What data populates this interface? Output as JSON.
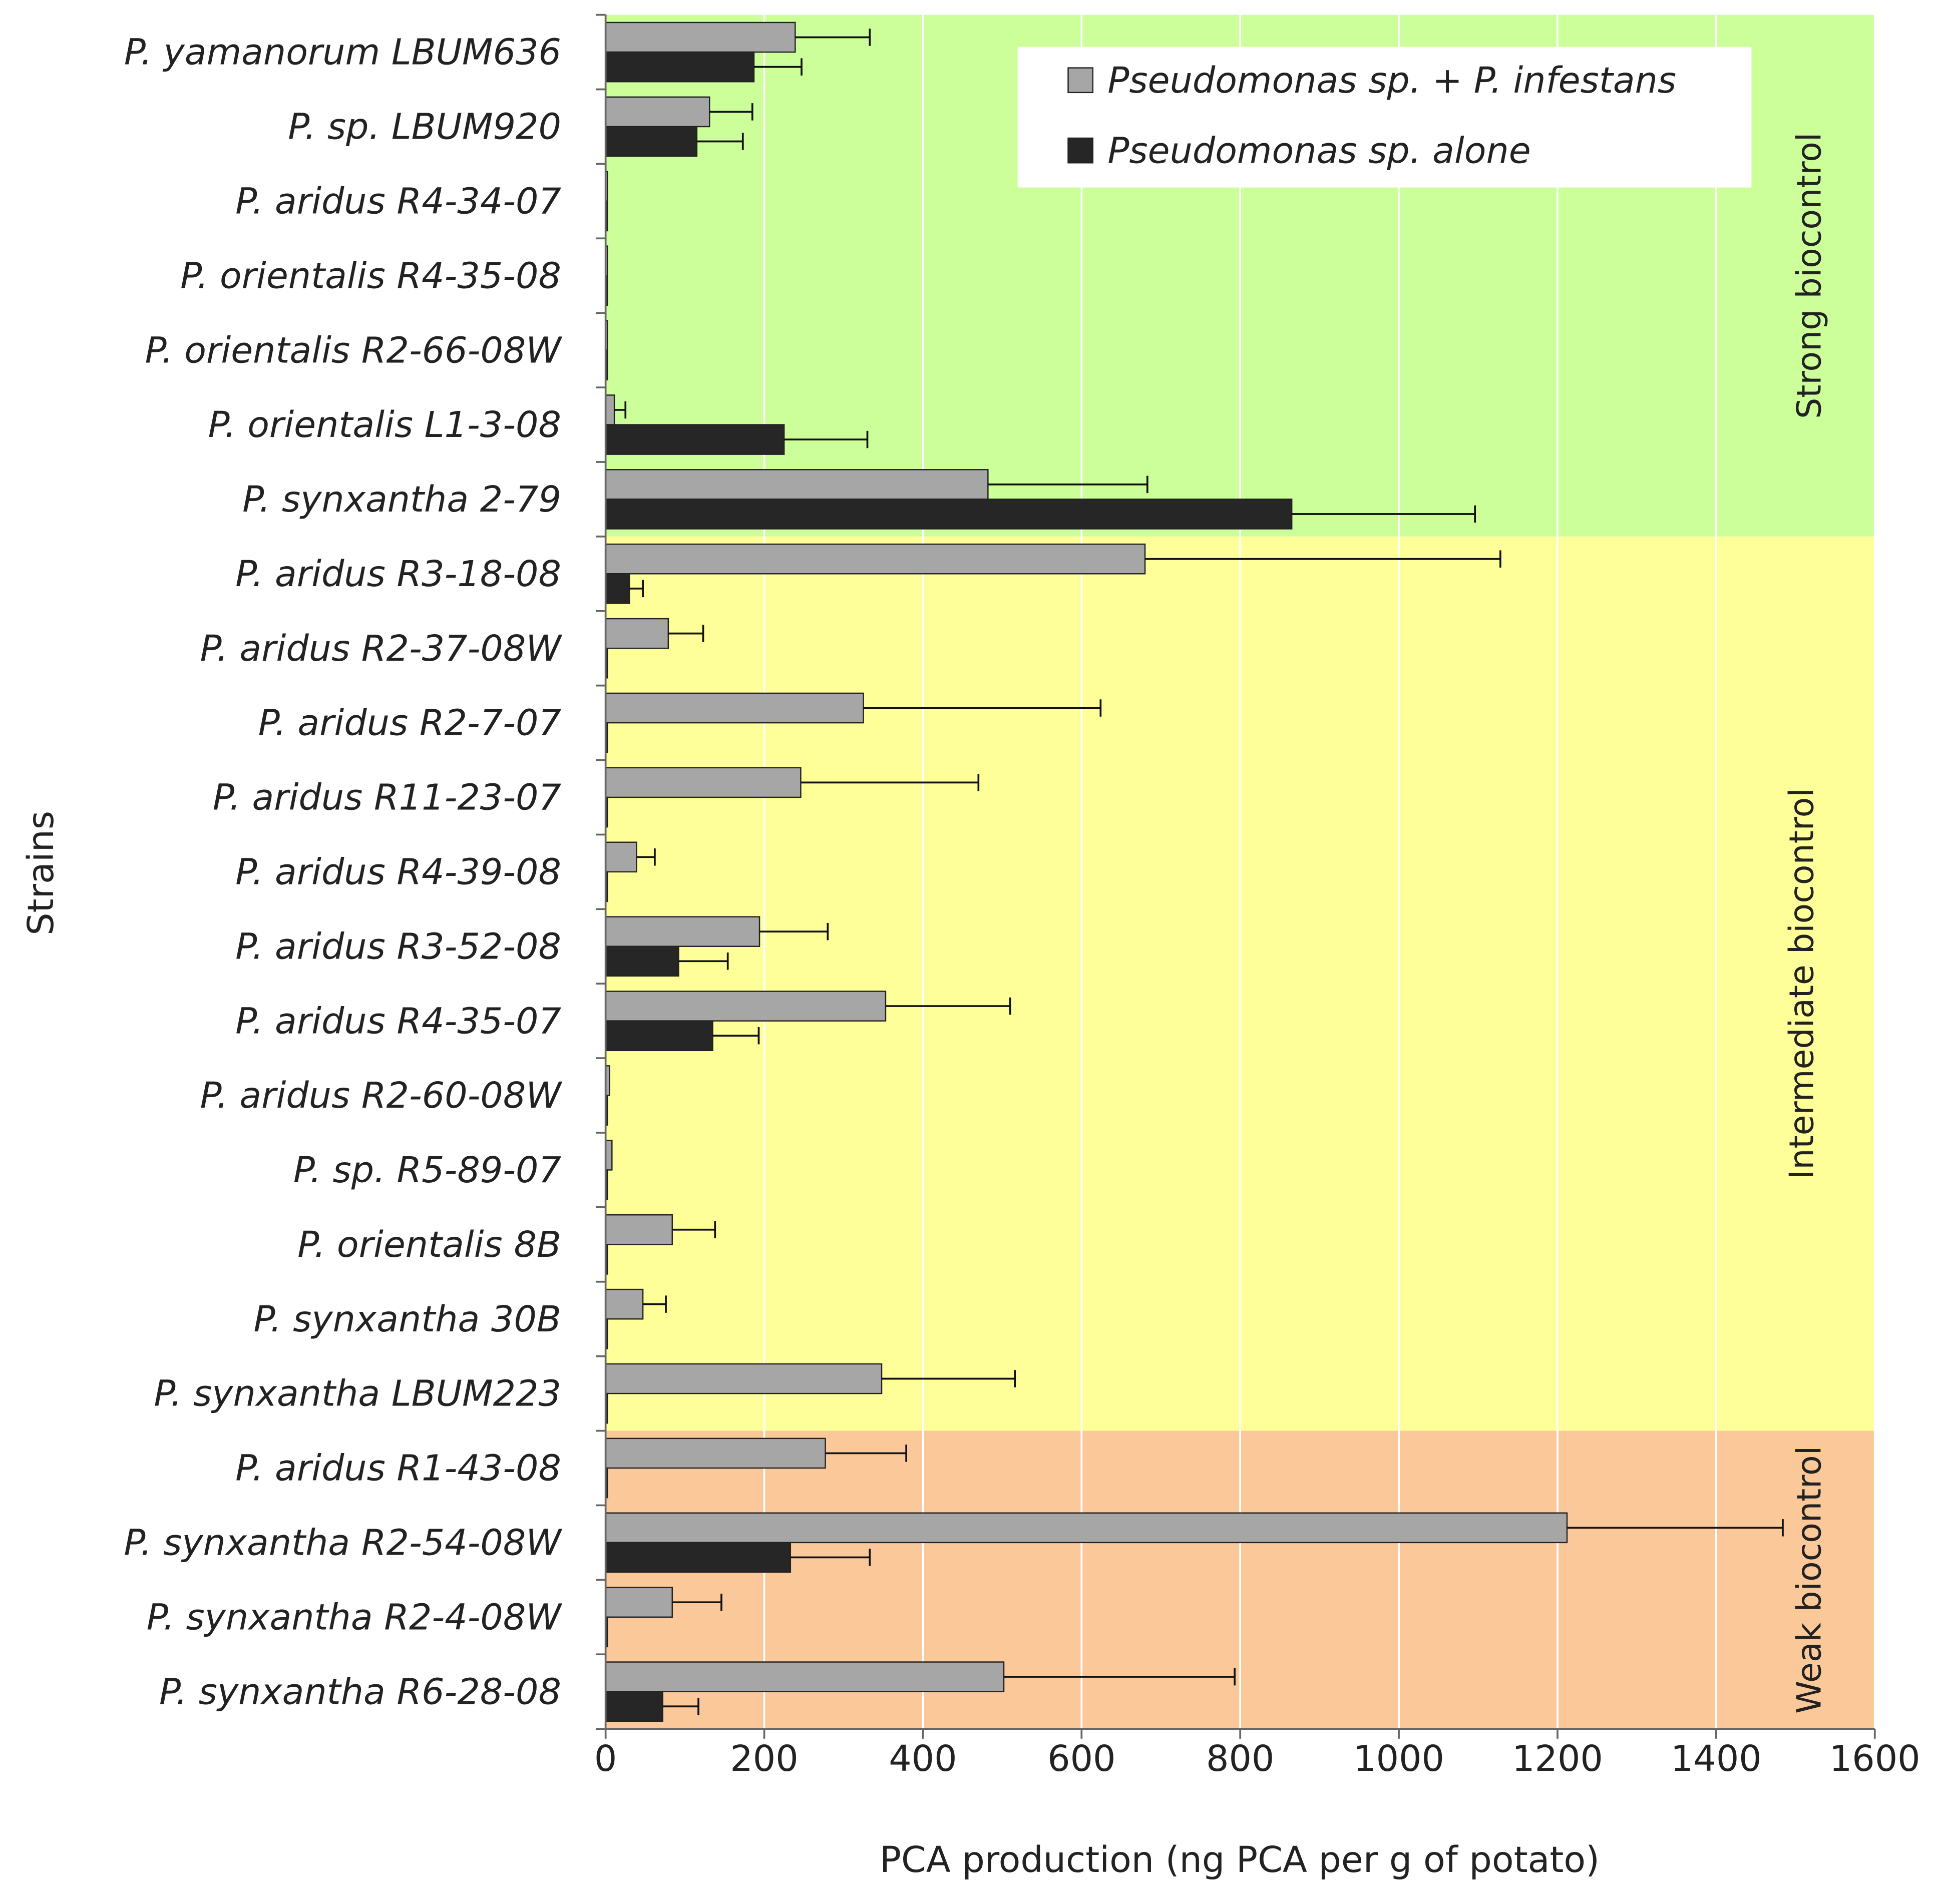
{
  "chart_data": {
    "type": "bar",
    "orientation": "horizontal",
    "xlabel": "PCA production (ng PCA per g of potato)",
    "ylabel": "Strains",
    "xlim": [
      0,
      1600
    ],
    "xticks": [
      0,
      200,
      400,
      600,
      800,
      1000,
      1200,
      1400,
      1600
    ],
    "xtick_labels": [
      "0",
      "200",
      "400",
      "600",
      "800",
      "1000",
      "1200",
      "1400",
      "1600"
    ],
    "grid": "vertical",
    "legend_position": "top-right",
    "categories": [
      "P. yamanorum LBUM636",
      "P. sp. LBUM920",
      "P. aridus R4-34-07",
      "P. orientalis R4-35-08",
      "P. orientalis R2-66-08W",
      "P. orientalis L1-3-08",
      "P. synxantha 2-79",
      "P. aridus R3-18-08",
      "P. aridus R2-37-08W",
      "P. aridus R2-7-07",
      "P. aridus R11-23-07",
      "P. aridus R4-39-08",
      "P. aridus R3-52-08",
      "P. aridus R4-35-07",
      "P. aridus R2-60-08W",
      "P. sp. R5-89-07",
      "P. orientalis 8B",
      "P. synxantha 30B",
      "P. synxantha LBUM223",
      "P. aridus R1-43-08",
      "P. synxantha R2-54-08W",
      "P. synxantha R2-4-08W",
      "P. synxantha R6-28-08"
    ],
    "series": [
      {
        "name": "Pseudomonas sp. + P. infestans",
        "color": "#a6a6a6",
        "values": [
          239,
          131,
          2,
          2,
          2,
          11,
          482,
          680,
          79,
          325,
          246,
          39,
          194,
          353,
          5,
          8,
          84,
          47,
          348,
          277,
          1212,
          84,
          502
        ],
        "errors": [
          94,
          54,
          0,
          0,
          0,
          14,
          201,
          448,
          44,
          299,
          224,
          23,
          86,
          157,
          0,
          0,
          54,
          29,
          168,
          102,
          272,
          62,
          291
        ]
      },
      {
        "name": "Pseudomonas sp. alone",
        "color": "#262626",
        "values": [
          187,
          115,
          1,
          1,
          1,
          225,
          865,
          30,
          2,
          2,
          2,
          2,
          92,
          135,
          2,
          2,
          2,
          2,
          2,
          2,
          233,
          2,
          72
        ],
        "errors": [
          60,
          58,
          0,
          0,
          0,
          105,
          231,
          17,
          0,
          0,
          0,
          0,
          62,
          58,
          0,
          0,
          0,
          0,
          0,
          0,
          100,
          0,
          45
        ]
      }
    ],
    "bands": [
      {
        "label": "Strong biocontrol",
        "from": 0,
        "to": 6,
        "color": "#ccff99"
      },
      {
        "label": "Intermediate biocontrol",
        "from": 7,
        "to": 18,
        "color": "#ffff99"
      },
      {
        "label": "Weak biocontrol",
        "from": 19,
        "to": 22,
        "color": "#fbc89a"
      }
    ]
  }
}
